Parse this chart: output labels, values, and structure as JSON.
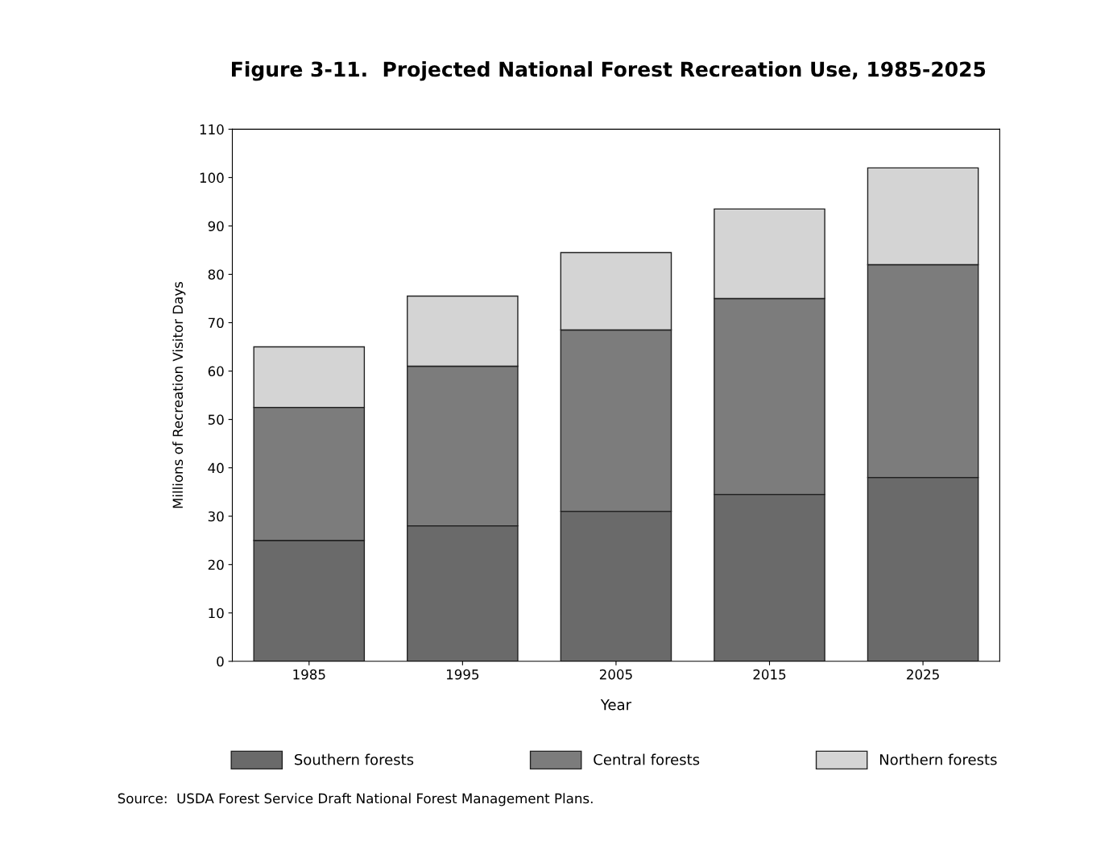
{
  "chart_data": {
    "type": "bar",
    "title": "Figure 3-11.  Projected National Forest Recreation Use, 1985-2025",
    "xlabel": "Year",
    "ylabel": "Millions of Recreation Visitor Days",
    "categories": [
      "1985",
      "1995",
      "2005",
      "2015",
      "2025"
    ],
    "stacked": true,
    "series": [
      {
        "name": "Southern forests",
        "color": "#6a6a6a",
        "values": [
          25,
          28,
          31,
          34.5,
          38
        ]
      },
      {
        "name": "Central forests",
        "color": "#7c7c7c",
        "values": [
          27.5,
          33,
          37.5,
          40.5,
          44
        ]
      },
      {
        "name": "Northern forests",
        "color": "#d4d4d4",
        "values": [
          12.5,
          14.5,
          16,
          18.5,
          20
        ]
      }
    ],
    "ylim": [
      0,
      110
    ],
    "yticks": [
      0,
      10,
      20,
      30,
      40,
      50,
      60,
      70,
      80,
      90,
      100,
      110
    ],
    "grid": false,
    "legend": "bottom",
    "annotations": [
      "Source:  USDA Forest Service Draft National Forest Management Plans."
    ]
  }
}
